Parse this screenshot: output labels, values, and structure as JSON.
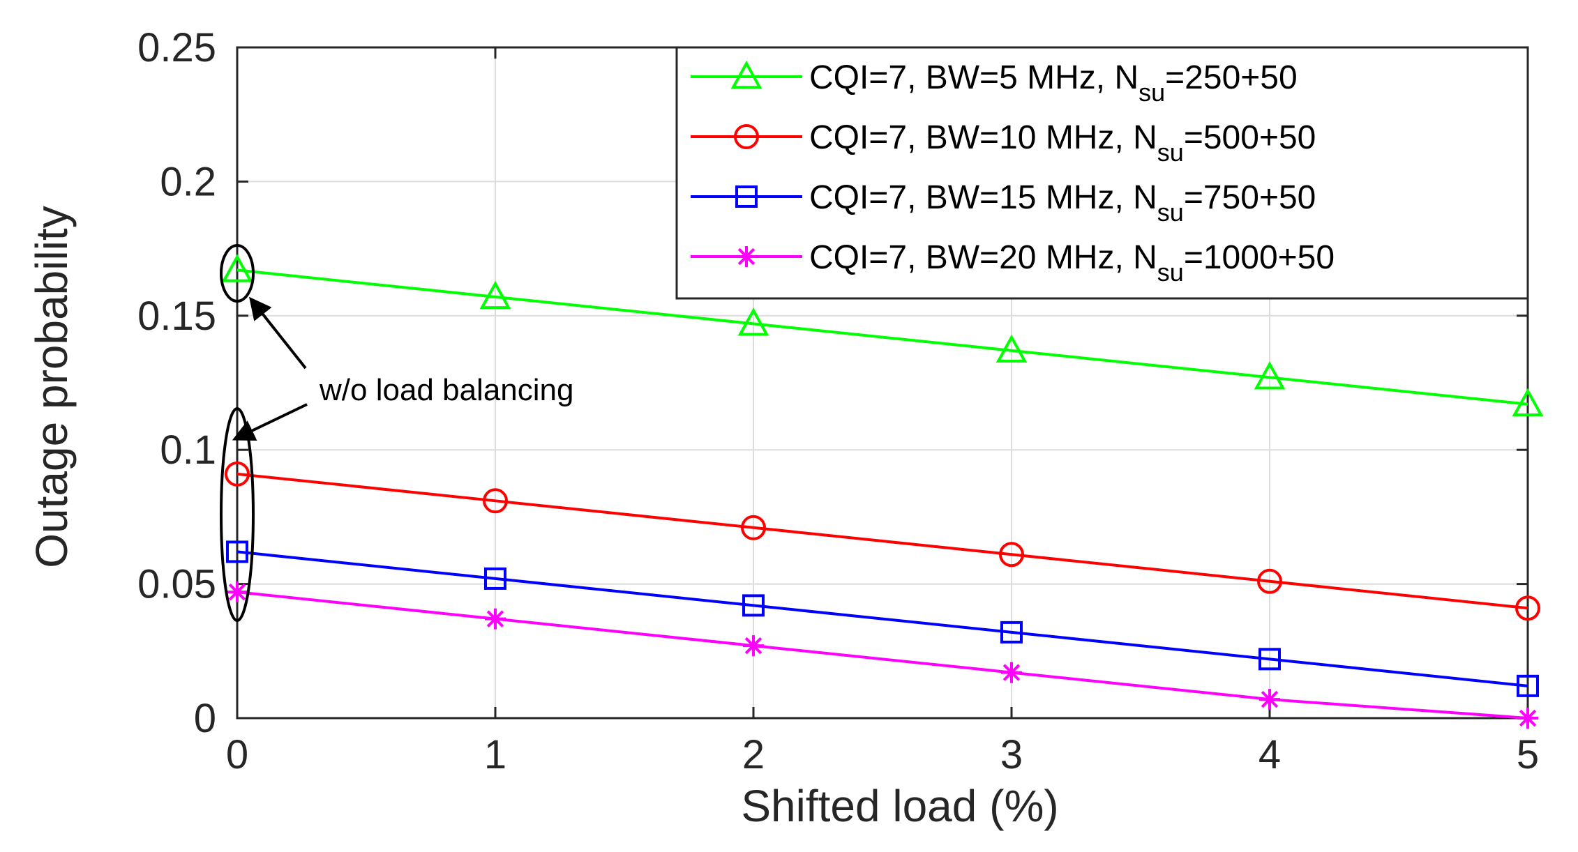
{
  "chart_data": {
    "type": "line",
    "title": "",
    "xlabel": "Shifted load (%)",
    "ylabel": "Outage probability",
    "xlim": [
      0,
      5
    ],
    "ylim": [
      0,
      0.25
    ],
    "xticks": [
      0,
      1,
      2,
      3,
      4,
      5
    ],
    "xtick_labels": [
      "0",
      "1",
      "2",
      "3",
      "4",
      "5"
    ],
    "yticks": [
      0,
      0.05,
      0.1,
      0.15,
      0.2,
      0.25
    ],
    "ytick_labels": [
      "0",
      "0.05",
      "0.1",
      "0.15",
      "0.2",
      "0.25"
    ],
    "grid": true,
    "legend_position": "top-right",
    "x": [
      0,
      1,
      2,
      3,
      4,
      5
    ],
    "series": [
      {
        "name": "CQI=7, BW=5 MHz, N_su=250+50",
        "legend_main": "CQI=7, BW=5 MHz, N",
        "legend_sub": "su",
        "legend_tail": "=250+50",
        "color": "#00ff00",
        "marker": "triangle",
        "values": [
          0.167,
          0.157,
          0.147,
          0.137,
          0.127,
          0.117
        ]
      },
      {
        "name": "CQI=7, BW=10 MHz, N_su=500+50",
        "legend_main": "CQI=7, BW=10 MHz, N",
        "legend_sub": "su",
        "legend_tail": "=500+50",
        "color": "#ff0000",
        "marker": "circle",
        "values": [
          0.091,
          0.081,
          0.071,
          0.061,
          0.051,
          0.041
        ]
      },
      {
        "name": "CQI=7, BW=15 MHz, N_su=750+50",
        "legend_main": "CQI=7, BW=15 MHz, N",
        "legend_sub": "su",
        "legend_tail": "=750+50",
        "color": "#0000ff",
        "marker": "square",
        "values": [
          0.062,
          0.052,
          0.042,
          0.032,
          0.022,
          0.012
        ]
      },
      {
        "name": "CQI=7, BW=20 MHz, N_su=1000+50",
        "legend_main": "CQI=7, BW=20 MHz, N",
        "legend_sub": "su",
        "legend_tail": "=1000+50",
        "color": "#ff00ff",
        "marker": "star",
        "values": [
          0.047,
          0.037,
          0.027,
          0.017,
          0.007,
          0.0
        ]
      }
    ],
    "annotation": {
      "text": "w/o load balancing",
      "targets": [
        "top-ellipse",
        "bottom-ellipse"
      ]
    }
  }
}
